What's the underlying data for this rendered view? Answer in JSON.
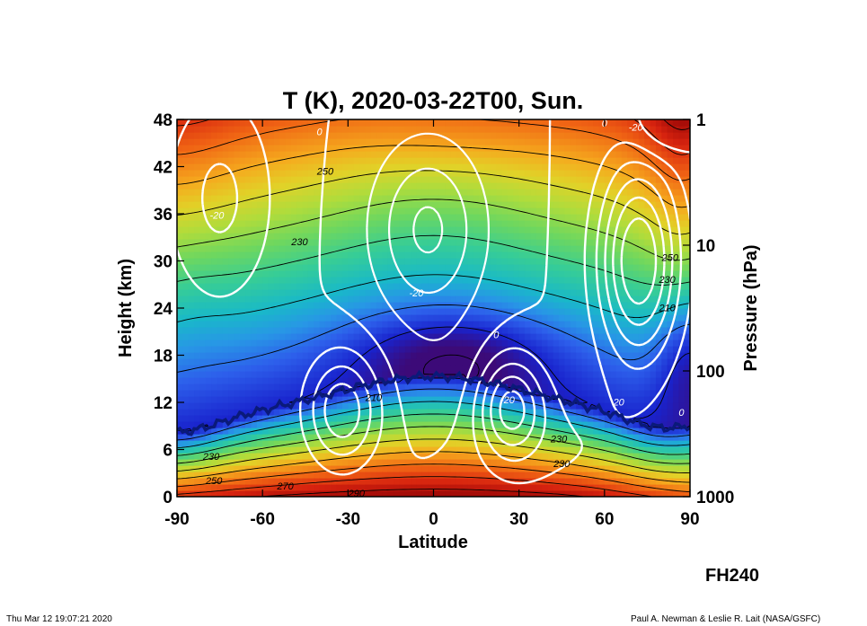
{
  "chart_data": {
    "type": "heatmap",
    "title": "T (K), 2020-03-22T00, Sun.",
    "xlabel": "Latitude",
    "ylabel": "Height (km)",
    "y2label": "Pressure (hPa)",
    "xlim": [
      -90,
      90
    ],
    "ylim": [
      0,
      48
    ],
    "x_ticks": [
      "-90",
      "-60",
      "-30",
      "0",
      "30",
      "60",
      "90"
    ],
    "y_ticks": [
      "0",
      "6",
      "12",
      "18",
      "24",
      "30",
      "36",
      "42",
      "48"
    ],
    "y2_ticks": [
      "1000",
      "100",
      "10",
      "1"
    ],
    "y2_tick_heights_km": [
      0,
      16,
      32,
      48
    ],
    "filled_field": "temperature (K)",
    "black_contours": "temperature (K), interval 10 K",
    "white_contours": "zonal wind, solid positive / dashed negative, interval 10",
    "tropopause": "thick dark blue line",
    "temperature_contour_labels": [
      {
        "text": "250",
        "lat": -38,
        "z": 41
      },
      {
        "text": "230",
        "lat": -47,
        "z": 32
      },
      {
        "text": "210",
        "lat": -21,
        "z": 12.2
      },
      {
        "text": "230",
        "lat": -78,
        "z": 4.7
      },
      {
        "text": "250",
        "lat": -77,
        "z": 1.6
      },
      {
        "text": "270",
        "lat": -52,
        "z": 0.9
      },
      {
        "text": "290",
        "lat": -27,
        "z": 0.0
      },
      {
        "text": "230",
        "lat": 44,
        "z": 6.9
      },
      {
        "text": "230",
        "lat": 45,
        "z": 3.8
      },
      {
        "text": "250",
        "lat": 83,
        "z": 30.0
      },
      {
        "text": "230",
        "lat": 82,
        "z": 27.2
      },
      {
        "text": "210",
        "lat": 82,
        "z": 23.6
      }
    ],
    "wind_contour_labels": [
      {
        "text": "0",
        "lat": -40,
        "z": 46
      },
      {
        "text": "-20",
        "lat": -6,
        "z": 25.5
      },
      {
        "text": "0",
        "lat": 22,
        "z": 20.2
      },
      {
        "text": "-20",
        "lat": -76,
        "z": 35.4
      },
      {
        "text": "-20",
        "lat": 26,
        "z": 11.9
      },
      {
        "text": "20",
        "lat": 65,
        "z": 11.6
      },
      {
        "text": "0",
        "lat": 60,
        "z": 47.1
      },
      {
        "text": "-20",
        "lat": 71,
        "z": 46.6
      },
      {
        "text": "0",
        "lat": 87,
        "z": 10.3
      }
    ]
  },
  "footer": {
    "forecast_hour": "FH240",
    "timestamp": "Thu Mar 12 19:07:21 2020",
    "credit": "Paul A. Newman & Leslie R. Lait (NASA/GSFC)"
  }
}
